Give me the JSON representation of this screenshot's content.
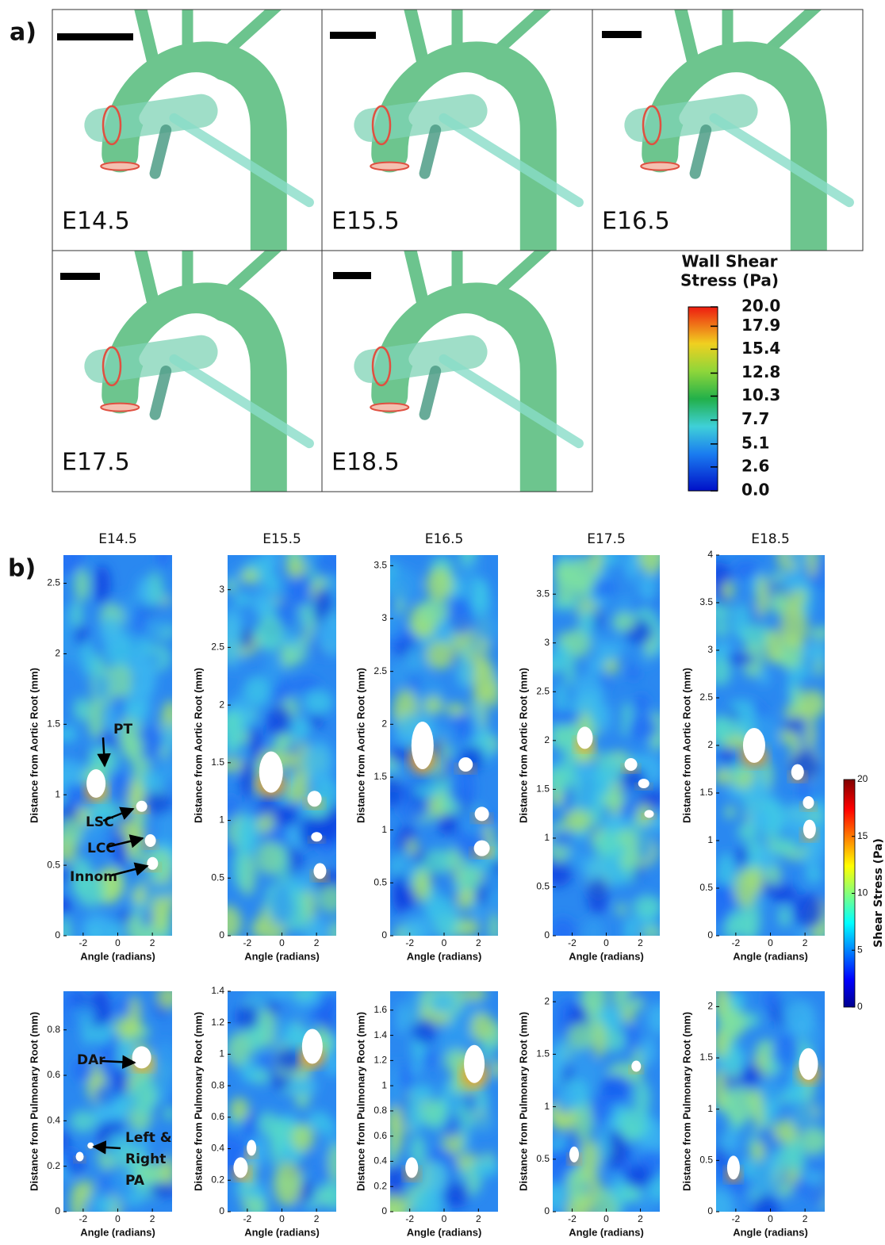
{
  "panel_a": {
    "label": "a)",
    "renders": [
      {
        "label": "E14.5"
      },
      {
        "label": "E15.5"
      },
      {
        "label": "E16.5"
      },
      {
        "label": "E17.5"
      },
      {
        "label": "E18.5"
      }
    ],
    "colorbar": {
      "title": [
        "Wall Shear",
        "Stress (Pa)"
      ],
      "lim": [
        0,
        20
      ],
      "ticks": [
        {
          "value": 20,
          "label": "20.0"
        },
        17.9,
        15.4,
        12.8,
        10.3,
        7.7,
        5.1,
        2.6,
        {
          "value": 0,
          "label": "0.0"
        }
      ]
    }
  },
  "panel_b": {
    "label": "b)",
    "plots": [
      {
        "title": "E14.5",
        "ylabel": "Distance from Aortic Root (mm)",
        "xlabel": "Angle (radians)",
        "xlim": [
          -3.14,
          3.14
        ],
        "xticks": [
          -2,
          0,
          2
        ],
        "ylim": [
          0,
          2.7
        ],
        "yticks": [
          0,
          0.5,
          1,
          1.5,
          2,
          2.5
        ],
        "annotations": [
          "PT",
          "LSC",
          "LCC",
          "Innom"
        ]
      },
      {
        "title": "E15.5",
        "ylabel": "Distance from Aortic Root (mm)",
        "xlabel": "Angle (radians)",
        "xlim": [
          -3.14,
          3.14
        ],
        "xticks": [
          -2,
          0,
          2
        ],
        "ylim": [
          0,
          3.3
        ],
        "yticks": [
          0,
          0.5,
          1,
          1.5,
          2,
          2.5,
          3
        ]
      },
      {
        "title": "E16.5",
        "ylabel": "Distance from Aortic Root (mm)",
        "xlabel": "Angle (radians)",
        "xlim": [
          -3.14,
          3.14
        ],
        "xticks": [
          -2,
          0,
          2
        ],
        "ylim": [
          0,
          3.6
        ],
        "yticks": [
          0,
          0.5,
          1,
          1.5,
          2,
          2.5,
          3,
          3.5
        ]
      },
      {
        "title": "E17.5",
        "ylabel": "Distance from Aortic Root (mm)",
        "xlabel": "Angle (radians)",
        "xlim": [
          -3.14,
          3.14
        ],
        "xticks": [
          -2,
          0,
          2
        ],
        "ylim": [
          0,
          3.9
        ],
        "yticks": [
          0,
          0.5,
          1,
          1.5,
          2,
          2.5,
          3,
          3.5
        ]
      },
      {
        "title": "E18.5",
        "ylabel": "Distance from Aortic Root (mm)",
        "xlabel": "Angle (radians)",
        "xlim": [
          -3.14,
          3.14
        ],
        "xticks": [
          -2,
          0,
          2
        ],
        "ylim": [
          0,
          4
        ],
        "yticks": [
          0,
          0.5,
          1,
          1.5,
          2,
          2.5,
          3,
          3.5,
          4
        ]
      },
      {
        "ylabel": "Distance from Pulmonary Root (mm)",
        "xlabel": "Angle (radians)",
        "xlim": [
          -3.14,
          3.14
        ],
        "xticks": [
          -2,
          0,
          2
        ],
        "ylim": [
          0,
          0.97
        ],
        "yticks": [
          0,
          0.2,
          0.4,
          0.6,
          0.8
        ],
        "annotations": [
          "DAr",
          [
            "Left &",
            "Right",
            "PA"
          ]
        ]
      },
      {
        "ylabel": "Distance from Pulmonary Root (mm)",
        "xlabel": "Angle (radians)",
        "xlim": [
          -3.14,
          3.14
        ],
        "xticks": [
          -2,
          0,
          2
        ],
        "ylim": [
          0,
          1.4
        ],
        "yticks": [
          0,
          0.2,
          0.4,
          0.6,
          0.8,
          1,
          1.2,
          1.4
        ]
      },
      {
        "ylabel": "Distance from Pulmonary Root (mm)",
        "xlabel": "Angle (radians)",
        "xlim": [
          -3.14,
          3.14
        ],
        "xticks": [
          -2,
          0,
          2
        ],
        "ylim": [
          0,
          1.75
        ],
        "yticks": [
          0,
          0.2,
          0.4,
          0.6,
          0.8,
          1,
          1.2,
          1.4,
          1.6
        ]
      },
      {
        "ylabel": "Distance from Pulmonary Root (mm)",
        "xlabel": "Angle (radians)",
        "xlim": [
          -3.14,
          3.14
        ],
        "xticks": [
          -2,
          0,
          2
        ],
        "ylim": [
          0,
          2.1
        ],
        "yticks": [
          0,
          0.5,
          1,
          1.5,
          2
        ]
      },
      {
        "ylabel": "Distance from Pulmonary Root (mm)",
        "xlabel": "Angle (radians)",
        "xlim": [
          -3.14,
          3.14
        ],
        "xticks": [
          -2,
          0,
          2
        ],
        "ylim": [
          0,
          2.15
        ],
        "yticks": [
          0,
          0.5,
          1,
          1.5,
          2
        ]
      }
    ],
    "colorbar": {
      "label": "Shear Stress (Pa)",
      "lim": [
        0,
        20
      ],
      "ticks": [
        0,
        5,
        10,
        15,
        20
      ]
    }
  }
}
